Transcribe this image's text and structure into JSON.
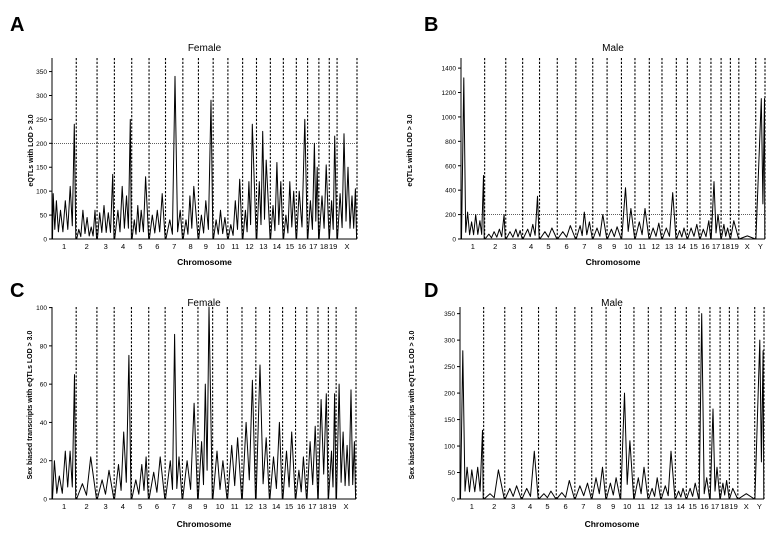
{
  "chart_data": [
    {
      "panel": "A",
      "type": "line",
      "title": "Female",
      "xlabel": "Chromosome",
      "ylabel": "eQTLs with LOD > 3.0",
      "ylim": [
        0,
        370
      ],
      "yticks": [
        0,
        50,
        100,
        150,
        200,
        250,
        300,
        350
      ],
      "threshold": 200,
      "chromosomes": [
        "1",
        "2",
        "3",
        "4",
        "5",
        "6",
        "7",
        "8",
        "9",
        "10",
        "11",
        "12",
        "13",
        "14",
        "15",
        "16",
        "17",
        "18",
        "19",
        "X"
      ],
      "widths": [
        1.4,
        1.2,
        1.0,
        1.0,
        1.0,
        0.95,
        1.0,
        0.9,
        0.85,
        0.85,
        0.85,
        0.8,
        0.8,
        0.75,
        0.75,
        0.65,
        0.65,
        0.6,
        0.45,
        1.15
      ],
      "peaks": [
        [
          [
            0.05,
            95
          ],
          [
            0.18,
            80
          ],
          [
            0.35,
            60
          ],
          [
            0.55,
            80
          ],
          [
            0.75,
            110
          ],
          [
            0.92,
            240
          ]
        ],
        [
          [
            0.12,
            20
          ],
          [
            0.32,
            60
          ],
          [
            0.52,
            45
          ],
          [
            0.72,
            25
          ],
          [
            0.9,
            60
          ]
        ],
        [
          [
            0.15,
            55
          ],
          [
            0.4,
            70
          ],
          [
            0.65,
            55
          ],
          [
            0.9,
            135
          ]
        ],
        [
          [
            0.2,
            60
          ],
          [
            0.45,
            110
          ],
          [
            0.7,
            90
          ],
          [
            0.92,
            250
          ]
        ],
        [
          [
            0.15,
            40
          ],
          [
            0.35,
            70
          ],
          [
            0.55,
            60
          ],
          [
            0.8,
            130
          ]
        ],
        [
          [
            0.2,
            50
          ],
          [
            0.5,
            60
          ],
          [
            0.8,
            95
          ]
        ],
        [
          [
            0.25,
            40
          ],
          [
            0.55,
            340
          ],
          [
            0.85,
            60
          ]
        ],
        [
          [
            0.2,
            40
          ],
          [
            0.45,
            90
          ],
          [
            0.7,
            110
          ]
        ],
        [
          [
            0.2,
            50
          ],
          [
            0.5,
            80
          ],
          [
            0.85,
            290
          ]
        ],
        [
          [
            0.2,
            40
          ],
          [
            0.5,
            60
          ],
          [
            0.8,
            45
          ]
        ],
        [
          [
            0.2,
            30
          ],
          [
            0.5,
            80
          ],
          [
            0.8,
            125
          ]
        ],
        [
          [
            0.2,
            60
          ],
          [
            0.45,
            120
          ],
          [
            0.7,
            240
          ]
        ],
        [
          [
            0.2,
            120
          ],
          [
            0.45,
            225
          ],
          [
            0.7,
            165
          ]
        ],
        [
          [
            0.2,
            70
          ],
          [
            0.5,
            160
          ],
          [
            0.8,
            120
          ]
        ],
        [
          [
            0.2,
            50
          ],
          [
            0.5,
            120
          ],
          [
            0.8,
            100
          ]
        ],
        [
          [
            0.25,
            100
          ],
          [
            0.75,
            250
          ]
        ],
        [
          [
            0.25,
            80
          ],
          [
            0.6,
            200
          ],
          [
            0.85,
            150
          ]
        ],
        [
          [
            0.3,
            90
          ],
          [
            0.7,
            155
          ]
        ],
        [
          [
            0.3,
            80
          ],
          [
            0.7,
            215
          ]
        ],
        [
          [
            0.15,
            95
          ],
          [
            0.35,
            220
          ],
          [
            0.55,
            150
          ],
          [
            0.75,
            90
          ],
          [
            0.92,
            105
          ]
        ]
      ]
    },
    {
      "panel": "B",
      "type": "line",
      "title": "Male",
      "xlabel": "Chromosome",
      "ylabel": "eQTLs with LOD > 3.0",
      "ylim": [
        0,
        1450
      ],
      "yticks": [
        0,
        200,
        400,
        600,
        800,
        1000,
        1200,
        1400
      ],
      "threshold": 200,
      "chromosomes": [
        "1",
        "2",
        "3",
        "4",
        "5",
        "6",
        "7",
        "8",
        "9",
        "10",
        "11",
        "12",
        "13",
        "14",
        "15",
        "16",
        "17",
        "18",
        "19",
        "X",
        "Y"
      ],
      "widths": [
        1.4,
        1.25,
        1.0,
        1.0,
        1.05,
        1.1,
        1.0,
        0.85,
        0.85,
        0.8,
        0.85,
        0.75,
        0.85,
        0.65,
        0.75,
        0.65,
        0.6,
        0.55,
        0.5,
        1.0,
        0.55
      ],
      "peaks": [
        [
          [
            0.12,
            1320
          ],
          [
            0.28,
            220
          ],
          [
            0.45,
            140
          ],
          [
            0.62,
            200
          ],
          [
            0.8,
            150
          ],
          [
            0.95,
            520
          ]
        ],
        [
          [
            0.2,
            40
          ],
          [
            0.45,
            60
          ],
          [
            0.7,
            80
          ],
          [
            0.92,
            200
          ]
        ],
        [
          [
            0.25,
            60
          ],
          [
            0.6,
            80
          ],
          [
            0.85,
            70
          ]
        ],
        [
          [
            0.3,
            80
          ],
          [
            0.6,
            120
          ],
          [
            0.88,
            350
          ]
        ],
        [
          [
            0.3,
            60
          ],
          [
            0.7,
            90
          ]
        ],
        [
          [
            0.3,
            60
          ],
          [
            0.7,
            110
          ]
        ],
        [
          [
            0.25,
            110
          ],
          [
            0.5,
            220
          ],
          [
            0.8,
            140
          ]
        ],
        [
          [
            0.3,
            90
          ],
          [
            0.7,
            200
          ]
        ],
        [
          [
            0.3,
            80
          ],
          [
            0.7,
            100
          ]
        ],
        [
          [
            0.3,
            420
          ],
          [
            0.7,
            250
          ]
        ],
        [
          [
            0.3,
            140
          ],
          [
            0.7,
            250
          ]
        ],
        [
          [
            0.3,
            90
          ],
          [
            0.75,
            130
          ]
        ],
        [
          [
            0.3,
            90
          ],
          [
            0.75,
            380
          ]
        ],
        [
          [
            0.3,
            70
          ],
          [
            0.7,
            90
          ]
        ],
        [
          [
            0.3,
            90
          ],
          [
            0.75,
            120
          ]
        ],
        [
          [
            0.3,
            80
          ],
          [
            0.8,
            150
          ]
        ],
        [
          [
            0.3,
            470
          ],
          [
            0.7,
            200
          ]
        ],
        [
          [
            0.3,
            120
          ],
          [
            0.7,
            90
          ]
        ],
        [
          [
            0.4,
            150
          ]
        ],
        [
          [
            0.5,
            25
          ]
        ],
        [
          [
            0.6,
            1150
          ],
          [
            0.95,
            1150
          ]
        ]
      ]
    },
    {
      "panel": "C",
      "type": "line",
      "title": "Female",
      "xlabel": "Chromosome",
      "ylabel": "Sex biased transcripts with eQTLs LOD > 3.0",
      "ylim": [
        0,
        110
      ],
      "yticks": [
        0,
        20,
        40,
        60,
        80,
        100
      ],
      "chromosomes": [
        "1",
        "2",
        "3",
        "4",
        "5",
        "6",
        "7",
        "8",
        "9",
        "10",
        "11",
        "12",
        "13",
        "14",
        "15",
        "16",
        "17",
        "18",
        "19",
        "X"
      ],
      "widths": [
        1.4,
        1.2,
        1.0,
        1.0,
        1.0,
        0.95,
        1.0,
        0.9,
        0.85,
        0.85,
        0.85,
        0.8,
        0.8,
        0.75,
        0.75,
        0.65,
        0.65,
        0.6,
        0.45,
        1.15
      ],
      "peaks": [
        [
          [
            0.1,
            20
          ],
          [
            0.3,
            12
          ],
          [
            0.55,
            25
          ],
          [
            0.75,
            25
          ],
          [
            0.93,
            65
          ]
        ],
        [
          [
            0.3,
            8
          ],
          [
            0.7,
            22
          ]
        ],
        [
          [
            0.3,
            10
          ],
          [
            0.7,
            15
          ]
        ],
        [
          [
            0.25,
            18
          ],
          [
            0.55,
            35
          ],
          [
            0.85,
            75
          ]
        ],
        [
          [
            0.25,
            10
          ],
          [
            0.6,
            18
          ],
          [
            0.85,
            22
          ]
        ],
        [
          [
            0.3,
            14
          ],
          [
            0.7,
            22
          ]
        ],
        [
          [
            0.3,
            20
          ],
          [
            0.55,
            86
          ],
          [
            0.8,
            22
          ]
        ],
        [
          [
            0.3,
            20
          ],
          [
            0.75,
            50
          ]
        ],
        [
          [
            0.25,
            30
          ],
          [
            0.5,
            60
          ],
          [
            0.75,
            103
          ]
        ],
        [
          [
            0.3,
            25
          ],
          [
            0.7,
            20
          ]
        ],
        [
          [
            0.3,
            28
          ],
          [
            0.7,
            32
          ]
        ],
        [
          [
            0.3,
            40
          ],
          [
            0.75,
            62
          ]
        ],
        [
          [
            0.3,
            70
          ],
          [
            0.75,
            32
          ]
        ],
        [
          [
            0.3,
            22
          ],
          [
            0.75,
            40
          ]
        ],
        [
          [
            0.3,
            25
          ],
          [
            0.7,
            35
          ]
        ],
        [
          [
            0.3,
            15
          ],
          [
            0.7,
            22
          ]
        ],
        [
          [
            0.3,
            30
          ],
          [
            0.75,
            38
          ]
        ],
        [
          [
            0.3,
            52
          ],
          [
            0.8,
            55
          ]
        ],
        [
          [
            0.4,
            25
          ],
          [
            0.8,
            55
          ]
        ],
        [
          [
            0.15,
            60
          ],
          [
            0.35,
            35
          ],
          [
            0.55,
            28
          ],
          [
            0.75,
            57
          ],
          [
            0.92,
            30
          ]
        ]
      ]
    },
    {
      "panel": "D",
      "type": "line",
      "title": "Male",
      "xlabel": "Chromosome",
      "ylabel": "Sex biased transcripts with eQTLs LOD > 3.0",
      "ylim": [
        0,
        355
      ],
      "yticks": [
        0,
        50,
        100,
        150,
        200,
        250,
        300,
        350
      ],
      "chromosomes": [
        "1",
        "2",
        "3",
        "4",
        "5",
        "6",
        "7",
        "8",
        "9",
        "10",
        "11",
        "12",
        "13",
        "14",
        "15",
        "16",
        "17",
        "18",
        "19",
        "X",
        "Y"
      ],
      "widths": [
        1.4,
        1.25,
        1.0,
        1.0,
        1.05,
        1.1,
        1.0,
        0.85,
        0.85,
        0.8,
        0.85,
        0.75,
        0.85,
        0.65,
        0.75,
        0.65,
        0.6,
        0.55,
        0.5,
        1.0,
        0.55
      ],
      "peaks": [
        [
          [
            0.12,
            280
          ],
          [
            0.3,
            60
          ],
          [
            0.5,
            55
          ],
          [
            0.75,
            60
          ],
          [
            0.95,
            130
          ]
        ],
        [
          [
            0.3,
            10
          ],
          [
            0.7,
            55
          ]
        ],
        [
          [
            0.3,
            20
          ],
          [
            0.7,
            25
          ]
        ],
        [
          [
            0.3,
            20
          ],
          [
            0.75,
            90
          ]
        ],
        [
          [
            0.3,
            10
          ],
          [
            0.7,
            15
          ]
        ],
        [
          [
            0.3,
            12
          ],
          [
            0.7,
            35
          ]
        ],
        [
          [
            0.3,
            25
          ],
          [
            0.75,
            30
          ]
        ],
        [
          [
            0.3,
            40
          ],
          [
            0.75,
            60
          ]
        ],
        [
          [
            0.3,
            30
          ],
          [
            0.7,
            40
          ]
        ],
        [
          [
            0.3,
            200
          ],
          [
            0.7,
            110
          ]
        ],
        [
          [
            0.3,
            40
          ],
          [
            0.7,
            60
          ]
        ],
        [
          [
            0.3,
            20
          ],
          [
            0.7,
            40
          ]
        ],
        [
          [
            0.3,
            25
          ],
          [
            0.7,
            90
          ]
        ],
        [
          [
            0.3,
            15
          ],
          [
            0.7,
            20
          ]
        ],
        [
          [
            0.3,
            20
          ],
          [
            0.7,
            30
          ]
        ],
        [
          [
            0.25,
            350
          ],
          [
            0.7,
            40
          ]
        ],
        [
          [
            0.3,
            170
          ],
          [
            0.7,
            60
          ]
        ],
        [
          [
            0.3,
            30
          ],
          [
            0.7,
            35
          ]
        ],
        [
          [
            0.4,
            20
          ]
        ],
        [
          [
            0.5,
            10
          ]
        ],
        [
          [
            0.55,
            300
          ],
          [
            0.9,
            280
          ]
        ]
      ]
    }
  ]
}
